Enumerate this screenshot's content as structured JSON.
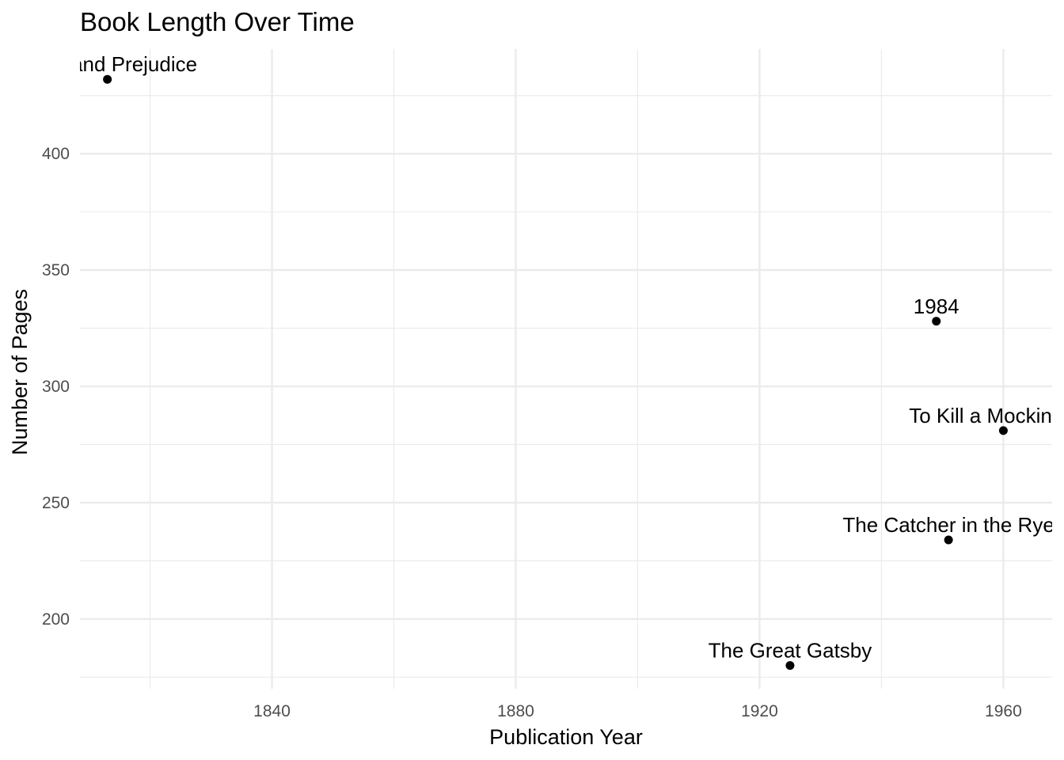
{
  "chart_data": {
    "type": "scatter",
    "title": "Book Length Over Time",
    "xlabel": "Publication Year",
    "ylabel": "Number of Pages",
    "xlim": [
      1808.5,
      1968
    ],
    "ylim": [
      170,
      445
    ],
    "x_ticks": [
      1840,
      1880,
      1920,
      1960
    ],
    "x_minor_ticks": [
      1820,
      1860,
      1900,
      1940
    ],
    "y_ticks": [
      200,
      250,
      300,
      350,
      400
    ],
    "y_minor_ticks": [
      175,
      225,
      275,
      325,
      375,
      425
    ],
    "grid": true,
    "legend": "none",
    "points": [
      {
        "label": "Pride and Prejudice",
        "x": 1813,
        "y": 432
      },
      {
        "label": "The Great Gatsby",
        "x": 1925,
        "y": 180
      },
      {
        "label": "1984",
        "x": 1949,
        "y": 328
      },
      {
        "label": "The Catcher in the Rye",
        "x": 1951,
        "y": 234
      },
      {
        "label": "To Kill a Mockingbird",
        "x": 1960,
        "y": 281
      }
    ],
    "colors": {
      "point": "#000000",
      "grid": "#ebebeb",
      "tick_text": "#4d4d4d"
    }
  }
}
